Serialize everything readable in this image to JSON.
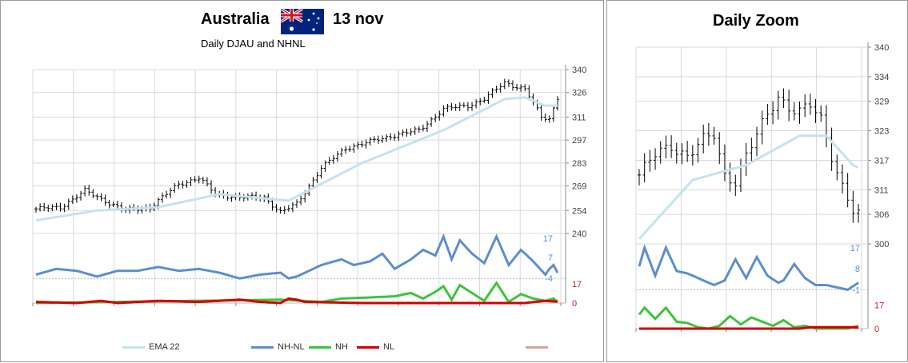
{
  "main": {
    "title_left": "Australia",
    "title_right": "13 nov",
    "subtitle": "Daily DJAU and NHNL",
    "flag_icon": "australia-flag-icon"
  },
  "zoom": {
    "title": "Daily Zoom"
  },
  "legend": [
    {
      "label": "EMA 22",
      "color": "#c5e3ee"
    },
    {
      "label": "NH-NL",
      "color": "#5b8fcf"
    },
    {
      "label": "NH",
      "color": "#3cc43c"
    },
    {
      "label": "NL",
      "color": "#d40000"
    },
    {
      "label": "",
      "color": "#d9a3a3"
    }
  ],
  "chart_data": [
    {
      "type": "ohlc",
      "name": "price",
      "ylim": [
        240,
        340
      ],
      "y_ticks": [
        340,
        326,
        311,
        297,
        283,
        269,
        254,
        240
      ],
      "x_count": 129,
      "anchors": [
        [
          0,
          255
        ],
        [
          6,
          256
        ],
        [
          12,
          266
        ],
        [
          16,
          261
        ],
        [
          22,
          254
        ],
        [
          28,
          256
        ],
        [
          35,
          270
        ],
        [
          40,
          274
        ],
        [
          44,
          264
        ],
        [
          50,
          262
        ],
        [
          56,
          262
        ],
        [
          60,
          253
        ],
        [
          64,
          258
        ],
        [
          70,
          280
        ],
        [
          76,
          292
        ],
        [
          82,
          296
        ],
        [
          88,
          300
        ],
        [
          94,
          303
        ],
        [
          100,
          316
        ],
        [
          106,
          318
        ],
        [
          110,
          322
        ],
        [
          115,
          332
        ],
        [
          120,
          328
        ],
        [
          124,
          311
        ],
        [
          126,
          310
        ],
        [
          128,
          323
        ],
        [
          129,
          321
        ]
      ],
      "ema_anchors": [
        [
          0,
          248
        ],
        [
          15,
          254
        ],
        [
          30,
          256
        ],
        [
          45,
          264
        ],
        [
          62,
          260
        ],
        [
          80,
          283
        ],
        [
          100,
          303
        ],
        [
          115,
          322
        ],
        [
          120,
          323
        ],
        [
          125,
          318
        ],
        [
          129,
          318
        ]
      ],
      "tick_range": 3.2
    },
    {
      "type": "line",
      "name": "NH-NL",
      "axis_labels": [
        "17",
        "7",
        "-4"
      ],
      "color": "#5b8fcf",
      "anchors": [
        [
          0,
          -2
        ],
        [
          5,
          1
        ],
        [
          10,
          0
        ],
        [
          15,
          -3
        ],
        [
          20,
          0
        ],
        [
          25,
          0
        ],
        [
          30,
          2
        ],
        [
          35,
          0
        ],
        [
          40,
          1
        ],
        [
          45,
          -1
        ],
        [
          50,
          -4
        ],
        [
          55,
          -2
        ],
        [
          60,
          -1
        ],
        [
          62,
          -4
        ],
        [
          64,
          -3
        ],
        [
          70,
          3
        ],
        [
          75,
          6
        ],
        [
          78,
          3
        ],
        [
          82,
          5
        ],
        [
          85,
          9
        ],
        [
          88,
          1
        ],
        [
          92,
          6
        ],
        [
          95,
          11
        ],
        [
          98,
          8
        ],
        [
          100,
          18
        ],
        [
          102,
          6
        ],
        [
          104,
          16
        ],
        [
          107,
          9
        ],
        [
          110,
          4
        ],
        [
          113,
          18
        ],
        [
          116,
          3
        ],
        [
          119,
          11
        ],
        [
          122,
          5
        ],
        [
          125,
          -2
        ],
        [
          126,
          1
        ],
        [
          127,
          3
        ],
        [
          128,
          -1
        ],
        [
          129,
          5
        ]
      ]
    },
    {
      "type": "line",
      "name": "NH",
      "axis_labels": [
        "17",
        "0"
      ],
      "color": "#3cc43c",
      "anchors": [
        [
          0,
          0
        ],
        [
          20,
          1
        ],
        [
          40,
          2
        ],
        [
          60,
          3
        ],
        [
          70,
          1
        ],
        [
          75,
          4
        ],
        [
          82,
          5
        ],
        [
          88,
          6
        ],
        [
          92,
          9
        ],
        [
          95,
          4
        ],
        [
          98,
          10
        ],
        [
          100,
          15
        ],
        [
          102,
          3
        ],
        [
          104,
          16
        ],
        [
          107,
          9
        ],
        [
          110,
          2
        ],
        [
          113,
          18
        ],
        [
          116,
          1
        ],
        [
          119,
          8
        ],
        [
          122,
          4
        ],
        [
          125,
          2
        ],
        [
          127,
          4
        ],
        [
          128,
          1
        ],
        [
          129,
          4
        ]
      ]
    },
    {
      "type": "line",
      "name": "NL",
      "color": "#d40000",
      "anchors": [
        [
          0,
          1
        ],
        [
          10,
          0
        ],
        [
          16,
          2
        ],
        [
          20,
          0
        ],
        [
          30,
          2
        ],
        [
          40,
          1
        ],
        [
          50,
          3
        ],
        [
          55,
          1
        ],
        [
          60,
          0
        ],
        [
          62,
          4
        ],
        [
          64,
          3
        ],
        [
          66,
          1
        ],
        [
          80,
          0
        ],
        [
          120,
          0
        ],
        [
          125,
          2
        ],
        [
          129,
          1
        ]
      ]
    },
    {
      "type": "ohlc",
      "name": "price-zoom",
      "ylim": [
        300,
        340
      ],
      "y_ticks": [
        340,
        334,
        329,
        323,
        317,
        311,
        306,
        300
      ],
      "x_count": 42,
      "anchors": [
        [
          0,
          314
        ],
        [
          3,
          318
        ],
        [
          6,
          320
        ],
        [
          9,
          318
        ],
        [
          12,
          321
        ],
        [
          14,
          322
        ],
        [
          16,
          314
        ],
        [
          18,
          313
        ],
        [
          20,
          318
        ],
        [
          22,
          322
        ],
        [
          24,
          326
        ],
        [
          26,
          330
        ],
        [
          28,
          328
        ],
        [
          30,
          327
        ],
        [
          32,
          328
        ],
        [
          34,
          325
        ],
        [
          36,
          318
        ],
        [
          38,
          312
        ],
        [
          40,
          307
        ],
        [
          41,
          306
        ],
        [
          42,
          320
        ],
        [
          43,
          322
        ],
        [
          44,
          320
        ],
        [
          45,
          318
        ]
      ],
      "ema_anchors": [
        [
          0,
          301
        ],
        [
          10,
          313
        ],
        [
          20,
          316
        ],
        [
          30,
          322
        ],
        [
          35,
          322
        ],
        [
          40,
          316
        ],
        [
          42,
          315
        ],
        [
          45,
          317
        ]
      ],
      "tick_range": 3.0
    },
    {
      "type": "line",
      "name": "NH-NL-zoom",
      "axis_labels": [
        "17",
        "8",
        "-1"
      ],
      "color": "#5b8fcf",
      "anchors": [
        [
          0,
          9
        ],
        [
          1,
          17
        ],
        [
          3,
          5
        ],
        [
          5,
          17
        ],
        [
          7,
          7
        ],
        [
          9,
          6
        ],
        [
          10,
          5
        ],
        [
          12,
          3
        ],
        [
          14,
          1
        ],
        [
          16,
          3
        ],
        [
          18,
          12
        ],
        [
          20,
          4
        ],
        [
          22,
          13
        ],
        [
          24,
          5
        ],
        [
          26,
          2
        ],
        [
          27,
          3
        ],
        [
          29,
          10
        ],
        [
          31,
          4
        ],
        [
          33,
          1
        ],
        [
          35,
          1
        ],
        [
          37,
          0
        ],
        [
          39,
          -1
        ],
        [
          41,
          2
        ],
        [
          43,
          2
        ],
        [
          44,
          0
        ],
        [
          45,
          2
        ]
      ]
    },
    {
      "type": "line",
      "name": "NH-zoom",
      "axis_labels": [
        "17",
        "0"
      ],
      "color": "#3cc43c",
      "anchors": [
        [
          0,
          10
        ],
        [
          1,
          15
        ],
        [
          3,
          7
        ],
        [
          5,
          15
        ],
        [
          7,
          5
        ],
        [
          9,
          4
        ],
        [
          11,
          1
        ],
        [
          13,
          0
        ],
        [
          15,
          2
        ],
        [
          17,
          9
        ],
        [
          19,
          3
        ],
        [
          21,
          8
        ],
        [
          23,
          5
        ],
        [
          25,
          2
        ],
        [
          27,
          6
        ],
        [
          29,
          1
        ],
        [
          31,
          2
        ],
        [
          33,
          0
        ],
        [
          35,
          0
        ],
        [
          37,
          0
        ],
        [
          39,
          0
        ],
        [
          41,
          2
        ],
        [
          43,
          3
        ],
        [
          44,
          0
        ],
        [
          45,
          3
        ]
      ]
    },
    {
      "type": "line",
      "name": "NL-zoom",
      "color": "#d40000",
      "anchors": [
        [
          0,
          0
        ],
        [
          30,
          0
        ],
        [
          32,
          1
        ],
        [
          36,
          1
        ],
        [
          40,
          1
        ],
        [
          44,
          0
        ],
        [
          45,
          0
        ]
      ]
    }
  ]
}
